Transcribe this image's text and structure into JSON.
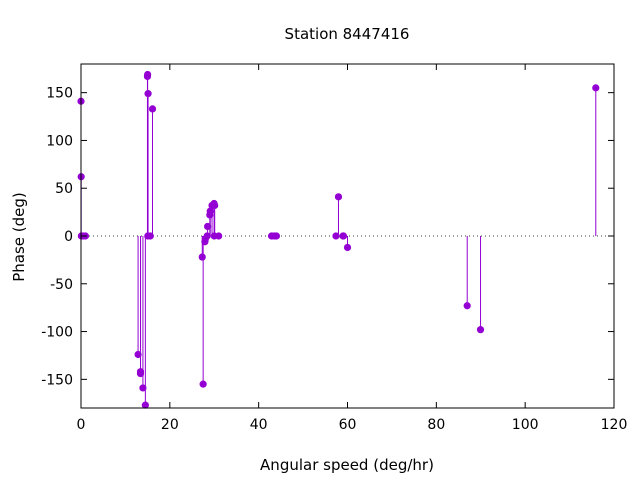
{
  "chart_data": {
    "type": "scatter",
    "style": "impulses-with-points",
    "title": "Station 8447416",
    "xlabel": "Angular speed (deg/hr)",
    "ylabel": "Phase (deg)",
    "xlim": [
      0,
      120
    ],
    "ylim": [
      -180,
      180
    ],
    "xticks": [
      0,
      20,
      40,
      60,
      80,
      100,
      120
    ],
    "yticks": [
      -150,
      -100,
      -50,
      0,
      50,
      100,
      150
    ],
    "zero_line": "dotted",
    "grid": false,
    "color": "#9400d3",
    "points": [
      [
        0.0,
        141
      ],
      [
        0.04,
        62
      ],
      [
        0.08,
        0
      ],
      [
        0.5,
        0
      ],
      [
        1.0,
        0
      ],
      [
        12.85,
        -124
      ],
      [
        13.4,
        -142
      ],
      [
        13.4,
        -144
      ],
      [
        13.94,
        -159
      ],
      [
        14.49,
        -177
      ],
      [
        14.96,
        167
      ],
      [
        15.0,
        169
      ],
      [
        15.04,
        0
      ],
      [
        15.1,
        149
      ],
      [
        15.6,
        0
      ],
      [
        16.1,
        133
      ],
      [
        27.3,
        -22
      ],
      [
        27.5,
        -155
      ],
      [
        27.9,
        -6
      ],
      [
        28.0,
        -3
      ],
      [
        28.4,
        0
      ],
      [
        28.5,
        10
      ],
      [
        29.0,
        22
      ],
      [
        29.1,
        26
      ],
      [
        29.5,
        32
      ],
      [
        29.96,
        34
      ],
      [
        30.0,
        0
      ],
      [
        30.1,
        32
      ],
      [
        31.0,
        0
      ],
      [
        42.9,
        0
      ],
      [
        43.5,
        0
      ],
      [
        44.0,
        0
      ],
      [
        57.4,
        0
      ],
      [
        57.97,
        41
      ],
      [
        58.98,
        0
      ],
      [
        59.1,
        0
      ],
      [
        60.0,
        -12
      ],
      [
        86.95,
        -73
      ],
      [
        89.95,
        -98
      ],
      [
        115.9,
        155
      ]
    ]
  }
}
